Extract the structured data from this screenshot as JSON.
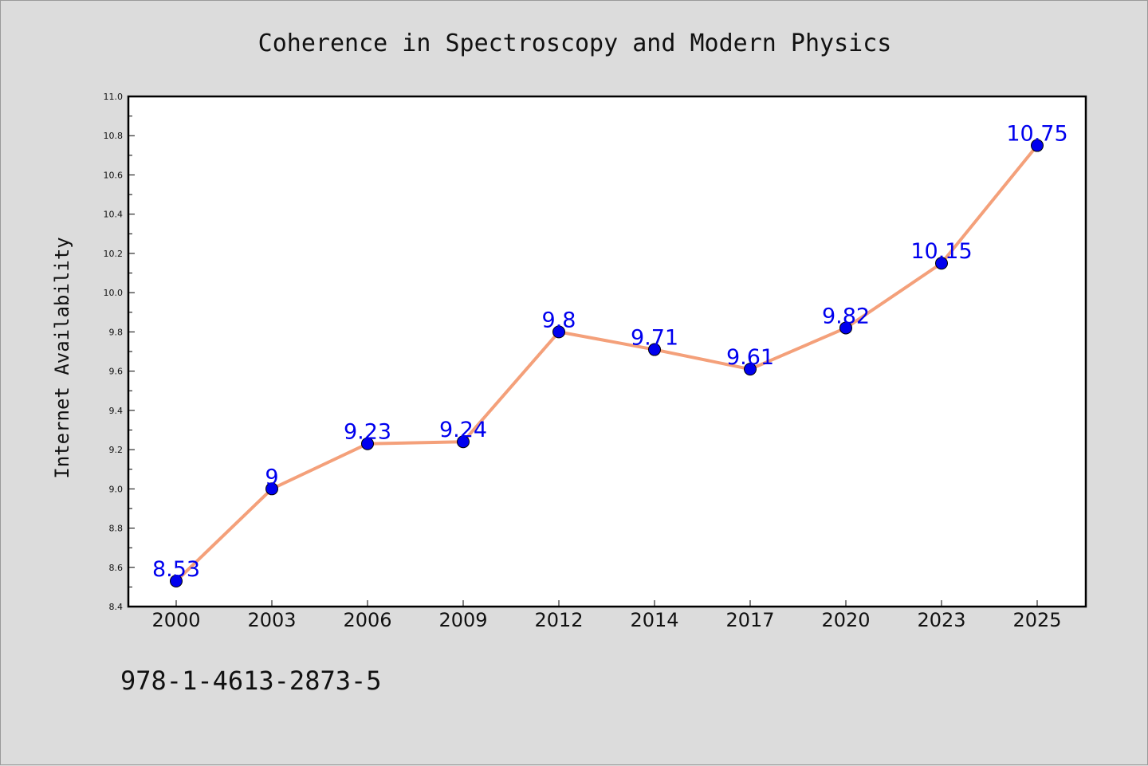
{
  "chart_data": {
    "type": "line",
    "title": "Coherence in Spectroscopy and Modern Physics",
    "xlabel": "",
    "ylabel": "Internet Availability",
    "categories": [
      "2000",
      "2003",
      "2006",
      "2009",
      "2012",
      "2014",
      "2017",
      "2020",
      "2023",
      "2025"
    ],
    "series": [
      {
        "values": [
          8.53,
          9,
          9.23,
          9.24,
          9.8,
          9.71,
          9.61,
          9.82,
          10.15,
          10.75
        ],
        "labels": [
          "8.53",
          "9",
          "9.23",
          "9.24",
          "9.8",
          "9.71",
          "9.61",
          "9.82",
          "10.15",
          "10.75"
        ],
        "line_color": "#f4a07a",
        "marker_color": "#0000ee"
      }
    ],
    "ylim": [
      8.4,
      11.0
    ],
    "yticks": [
      "8.4",
      "8.6",
      "8.8",
      "9.0",
      "9.2",
      "9.4",
      "9.6",
      "9.8",
      "10.0",
      "10.2",
      "10.4",
      "10.6",
      "10.8",
      "11.0"
    ],
    "grid": false,
    "legend": "none"
  },
  "footnote": "978-1-4613-2873-5"
}
